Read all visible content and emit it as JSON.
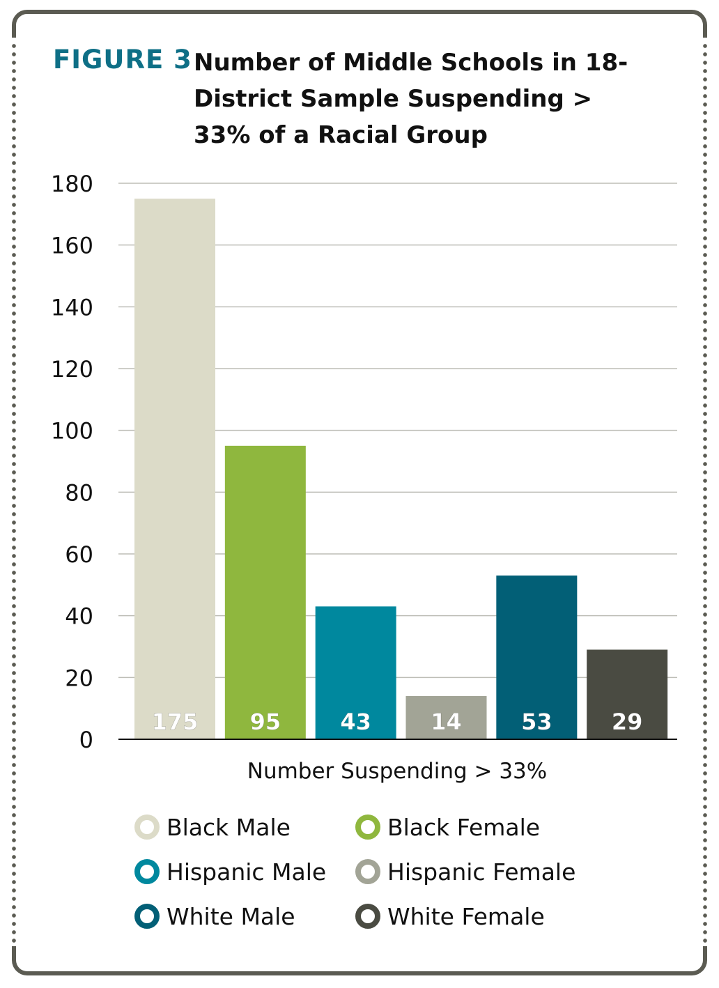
{
  "figure_label": "FIGURE 3",
  "chart_data": {
    "type": "bar",
    "title": "Number of Middle Schools in 18-District Sample Suspending > 33% of a Racial Group",
    "xlabel": "Number Suspending > 33%",
    "ylabel": "",
    "ylim": [
      0,
      180
    ],
    "yticks": [
      0,
      20,
      40,
      60,
      80,
      100,
      120,
      140,
      160,
      180
    ],
    "grid": true,
    "legend_placement": "bottom",
    "series": [
      {
        "name": "Black Male",
        "value": 175,
        "color": "#dcdbc8"
      },
      {
        "name": "Black Female",
        "value": 95,
        "color": "#8fb73e"
      },
      {
        "name": "Hispanic Male",
        "value": 43,
        "color": "#00889e"
      },
      {
        "name": "Hispanic Female",
        "value": 14,
        "color": "#a2a496"
      },
      {
        "name": "White Male",
        "value": 53,
        "color": "#025f76"
      },
      {
        "name": "White Female",
        "value": 29,
        "color": "#4a4b42"
      }
    ]
  }
}
